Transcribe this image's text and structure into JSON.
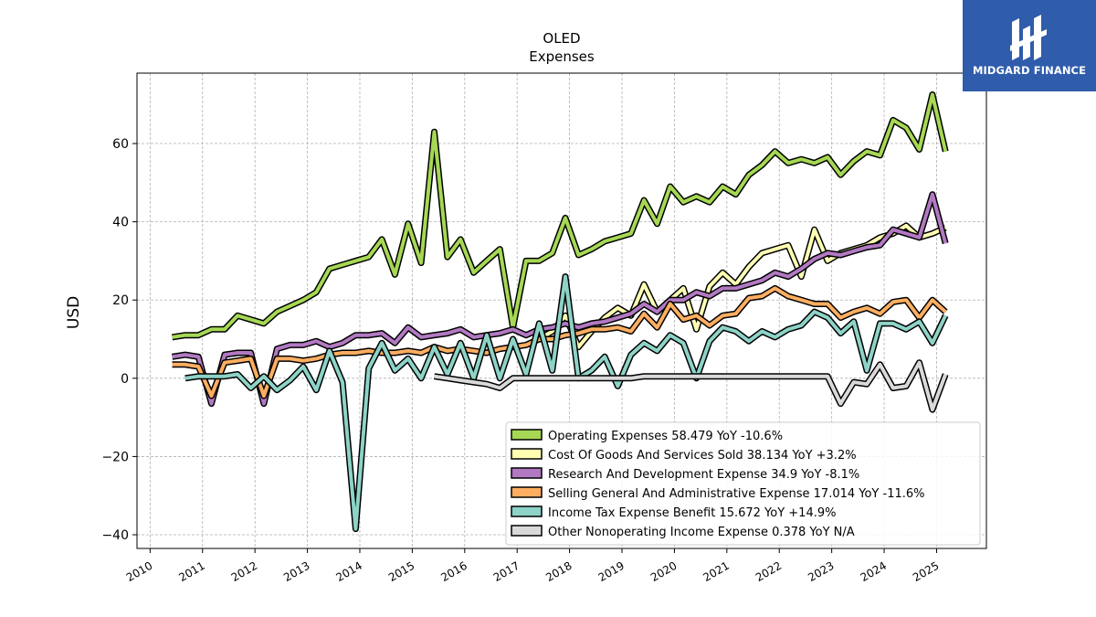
{
  "chart_data": {
    "type": "line",
    "title": "OLED",
    "subtitle": "Expenses",
    "ylabel": "USD",
    "xlabel": "",
    "ylim": [
      -43.5,
      78
    ],
    "xlim": [
      2009.75,
      2025.95
    ],
    "yticks": [
      -40,
      -20,
      0,
      20,
      40,
      60
    ],
    "xticks": [
      2010,
      2011,
      2012,
      2013,
      2014,
      2015,
      2016,
      2017,
      2018,
      2019,
      2020,
      2021,
      2022,
      2023,
      2024,
      2025
    ],
    "grid": true,
    "legend_position": "lower-right",
    "series": [
      {
        "name": "Operating Expenses",
        "legend": "Operating Expenses  58.479 YoY -10.6%",
        "color": "#a6d854",
        "x": [
          2010.42,
          2010.67,
          2010.92,
          2011.17,
          2011.42,
          2011.67,
          2011.92,
          2012.17,
          2012.42,
          2012.67,
          2012.92,
          2013.17,
          2013.42,
          2013.67,
          2013.92,
          2014.17,
          2014.42,
          2014.67,
          2014.92,
          2015.17,
          2015.42,
          2015.67,
          2015.92,
          2016.17,
          2016.42,
          2016.67,
          2016.92,
          2017.17,
          2017.42,
          2017.67,
          2017.92,
          2018.17,
          2018.42,
          2018.67,
          2018.92,
          2019.17,
          2019.42,
          2019.67,
          2019.92,
          2020.17,
          2020.42,
          2020.67,
          2020.92,
          2021.17,
          2021.42,
          2021.67,
          2021.92,
          2022.17,
          2022.42,
          2022.67,
          2022.92,
          2023.17,
          2023.42,
          2023.67,
          2023.92,
          2024.17,
          2024.42,
          2024.67,
          2024.92,
          2025.17
        ],
        "y": [
          10.5,
          11,
          11,
          12.5,
          12.5,
          16,
          15,
          14,
          17,
          18.5,
          20,
          22,
          28,
          29,
          30,
          31,
          35.5,
          26.5,
          39.5,
          29.5,
          63,
          31,
          35.5,
          27,
          30,
          33,
          13,
          30,
          30,
          32,
          41,
          31.5,
          33,
          35,
          36,
          37,
          45.5,
          39.5,
          49,
          45,
          46.5,
          45,
          49,
          47,
          52,
          54.5,
          58,
          55,
          56,
          55,
          56.5,
          52,
          55.5,
          58,
          57,
          66,
          64,
          58.5,
          72.5,
          58
        ]
      },
      {
        "name": "Cost Of Goods And Services Sold",
        "legend": "Cost Of Goods And Services Sold  38.134 YoY +3.2%",
        "color": "#ffffb3",
        "x": [
          2017.42,
          2017.67,
          2017.92,
          2018.17,
          2018.42,
          2018.67,
          2018.92,
          2019.17,
          2019.42,
          2019.67,
          2019.92,
          2020.17,
          2020.42,
          2020.67,
          2020.92,
          2021.17,
          2021.42,
          2021.67,
          2021.92,
          2022.17,
          2022.42,
          2022.67,
          2022.92,
          2023.17,
          2023.42,
          2023.67,
          2023.92,
          2024.17,
          2024.42,
          2024.67,
          2024.92,
          2025.17
        ],
        "y": [
          10,
          12,
          16,
          8,
          12,
          15.5,
          18,
          16,
          24,
          17,
          20,
          23,
          12.5,
          23.5,
          27,
          24,
          28.5,
          32,
          33,
          34,
          26,
          38,
          30,
          32,
          33,
          34,
          36,
          37,
          39,
          36,
          37,
          38.5
        ]
      },
      {
        "name": "Research And Development Expense",
        "legend": "Research And Development Expense  34.9 YoY -8.1%",
        "color": "#b279c2",
        "x": [
          2010.42,
          2010.67,
          2010.92,
          2011.17,
          2011.42,
          2011.67,
          2011.92,
          2012.17,
          2012.42,
          2012.67,
          2012.92,
          2013.17,
          2013.42,
          2013.67,
          2013.92,
          2014.17,
          2014.42,
          2014.67,
          2014.92,
          2015.17,
          2015.42,
          2015.67,
          2015.92,
          2016.17,
          2016.42,
          2016.67,
          2016.92,
          2017.17,
          2017.42,
          2017.67,
          2017.92,
          2018.17,
          2018.42,
          2018.67,
          2018.92,
          2019.17,
          2019.42,
          2019.67,
          2019.92,
          2020.17,
          2020.42,
          2020.67,
          2020.92,
          2021.17,
          2021.42,
          2021.67,
          2021.92,
          2022.17,
          2022.42,
          2022.67,
          2022.92,
          2023.17,
          2023.42,
          2023.67,
          2023.92,
          2024.17,
          2024.42,
          2024.67,
          2024.92,
          2025.17
        ],
        "y": [
          5.5,
          6,
          5.5,
          -6.5,
          6,
          6.5,
          6.5,
          -6.5,
          7.5,
          8.5,
          8.5,
          9.5,
          8,
          9,
          11,
          11,
          11.5,
          9,
          13,
          10.5,
          11,
          11.5,
          12.5,
          10.5,
          11,
          11.5,
          12.5,
          11,
          12.5,
          13,
          14,
          13,
          14,
          14.5,
          15.5,
          16.5,
          19,
          17,
          20,
          20,
          22,
          21,
          23,
          23,
          24,
          25,
          27,
          26,
          28,
          30.5,
          32,
          31.5,
          32.5,
          33.5,
          34,
          38,
          37,
          36,
          47,
          34.5
        ]
      },
      {
        "name": "Selling General And Administrative Expense",
        "legend": "Selling General And Administrative Expense  17.014 YoY -11.6%",
        "color": "#fdae61",
        "x": [
          2010.42,
          2010.67,
          2010.92,
          2011.17,
          2011.42,
          2011.67,
          2011.92,
          2012.17,
          2012.42,
          2012.67,
          2012.92,
          2013.17,
          2013.42,
          2013.67,
          2013.92,
          2014.17,
          2014.42,
          2014.67,
          2014.92,
          2015.17,
          2015.42,
          2015.67,
          2015.92,
          2016.17,
          2016.42,
          2016.67,
          2016.92,
          2017.17,
          2017.42,
          2017.67,
          2017.92,
          2018.17,
          2018.42,
          2018.67,
          2018.92,
          2019.17,
          2019.42,
          2019.67,
          2019.92,
          2020.17,
          2020.42,
          2020.67,
          2020.92,
          2021.17,
          2021.42,
          2021.67,
          2021.92,
          2022.17,
          2022.42,
          2022.67,
          2022.92,
          2023.17,
          2023.42,
          2023.67,
          2023.92,
          2024.17,
          2024.42,
          2024.67,
          2024.92,
          2025.17
        ],
        "y": [
          3.5,
          3.5,
          3,
          -4.5,
          4,
          4.5,
          5,
          -4.5,
          5,
          5,
          4.5,
          5,
          6,
          6.5,
          6.5,
          7,
          6.5,
          6.5,
          7,
          6.5,
          8,
          7,
          7.5,
          7,
          6.5,
          7.5,
          8,
          8.5,
          10,
          10,
          11,
          11.5,
          12.5,
          12.5,
          13,
          12,
          16.5,
          13,
          19,
          15,
          16,
          13.5,
          16,
          16.5,
          20.5,
          21,
          23,
          21,
          20,
          19,
          19,
          15.5,
          17,
          18,
          16.5,
          19.5,
          20,
          15.5,
          20,
          17
        ]
      },
      {
        "name": "Income Tax Expense Benefit",
        "legend": "Income Tax Expense Benefit  15.672 YoY +14.9%",
        "color": "#8dd3c7",
        "x": [
          2010.67,
          2010.92,
          2011.17,
          2011.42,
          2011.67,
          2011.92,
          2012.17,
          2012.42,
          2012.67,
          2012.92,
          2013.17,
          2013.42,
          2013.67,
          2013.92,
          2014.17,
          2014.42,
          2014.67,
          2014.92,
          2015.17,
          2015.42,
          2015.67,
          2015.92,
          2016.17,
          2016.42,
          2016.67,
          2016.92,
          2017.17,
          2017.42,
          2017.67,
          2017.92,
          2018.17,
          2018.42,
          2018.67,
          2018.92,
          2019.17,
          2019.42,
          2019.67,
          2019.92,
          2020.17,
          2020.42,
          2020.67,
          2020.92,
          2021.17,
          2021.42,
          2021.67,
          2021.92,
          2022.17,
          2022.42,
          2022.67,
          2022.92,
          2023.17,
          2023.42,
          2023.67,
          2023.92,
          2024.17,
          2024.42,
          2024.67,
          2024.92,
          2025.17
        ],
        "y": [
          0,
          0.5,
          0.5,
          0.5,
          1,
          -2.5,
          0.5,
          -3,
          -0.5,
          3,
          -3,
          7,
          -1,
          -38.5,
          2.5,
          9,
          2,
          5,
          0,
          8,
          1,
          9,
          0,
          11,
          0,
          10,
          1,
          14,
          2,
          26,
          0,
          2,
          5.5,
          -2,
          6,
          9,
          7,
          11,
          9,
          0,
          9.5,
          13,
          12,
          9.5,
          12,
          10.5,
          12.5,
          13.5,
          17,
          15.5,
          11.5,
          14.5,
          2,
          14,
          14,
          12.5,
          14.5,
          9,
          16
        ]
      },
      {
        "name": "Other Nonoperating Income Expense",
        "legend": "Other Nonoperating Income Expense  0.378 YoY N/A",
        "color": "#d9d9d9",
        "x": [
          2015.42,
          2015.67,
          2015.92,
          2016.17,
          2016.42,
          2016.67,
          2016.92,
          2017.17,
          2017.42,
          2017.67,
          2017.92,
          2018.17,
          2018.42,
          2018.67,
          2018.92,
          2019.17,
          2019.42,
          2019.67,
          2019.92,
          2020.17,
          2020.42,
          2020.67,
          2020.92,
          2021.17,
          2021.42,
          2021.67,
          2021.92,
          2022.17,
          2022.42,
          2022.67,
          2022.92,
          2023.17,
          2023.42,
          2023.67,
          2023.92,
          2024.17,
          2024.42,
          2024.67,
          2024.92,
          2025.17
        ],
        "y": [
          0.5,
          0,
          -0.5,
          -1,
          -1.5,
          -2.5,
          0,
          0,
          0,
          0,
          0,
          0,
          0,
          0,
          0,
          0,
          0.5,
          0.5,
          0.5,
          0.5,
          0.5,
          0.5,
          0.5,
          0.5,
          0.5,
          0.5,
          0.5,
          0.5,
          0.5,
          0.5,
          0.5,
          -6.5,
          -1,
          -1.5,
          3.5,
          -2.5,
          -2,
          4,
          -8,
          1
        ]
      }
    ]
  },
  "logo": {
    "text": "MIDGARD FINANCE",
    "icon": "midgard-logo-icon",
    "background": "#2f5cab"
  }
}
